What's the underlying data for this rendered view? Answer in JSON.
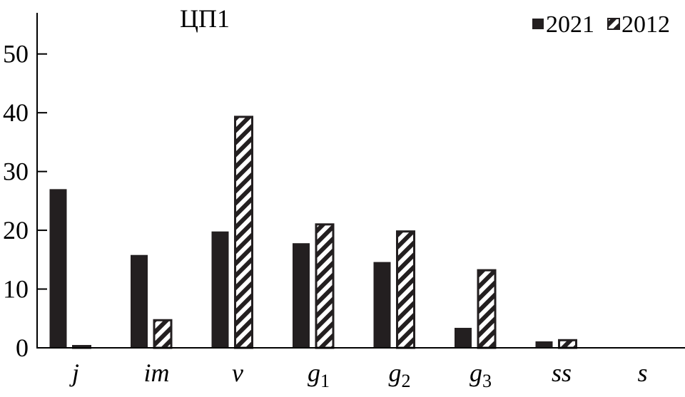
{
  "chart_data": {
    "type": "bar",
    "title": "ЦП1",
    "categories": [
      {
        "base": "j",
        "sub": ""
      },
      {
        "base": "im",
        "sub": ""
      },
      {
        "base": "v",
        "sub": ""
      },
      {
        "base": "g",
        "sub": "1"
      },
      {
        "base": "g",
        "sub": "2"
      },
      {
        "base": "g",
        "sub": "3"
      },
      {
        "base": "ss",
        "sub": ""
      },
      {
        "base": "s",
        "sub": ""
      }
    ],
    "series": [
      {
        "name": "2021",
        "pattern": "solid",
        "color": "#231f20",
        "values": [
          27,
          15.8,
          19.8,
          17.8,
          14.6,
          3.4,
          1.1,
          0
        ]
      },
      {
        "name": "2012",
        "pattern": "hatched",
        "color": "#231f20",
        "values": [
          0.3,
          4.7,
          39.3,
          21.0,
          19.8,
          13.2,
          1.3,
          0
        ]
      }
    ],
    "yticks": [
      0,
      10,
      20,
      30,
      40,
      50
    ],
    "ylim": [
      0,
      57
    ],
    "grid": false,
    "legend_position": "top-right",
    "xlabel": "",
    "ylabel": ""
  }
}
